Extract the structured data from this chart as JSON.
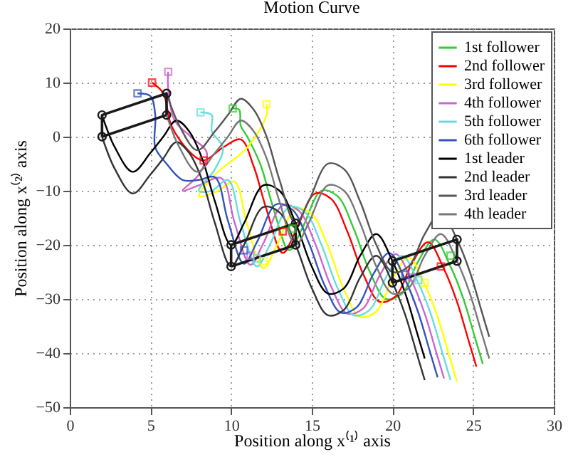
{
  "chart_data": {
    "type": "line",
    "title": "Motion Curve",
    "xlabel": "Position along x⁽¹⁾ axis",
    "ylabel": "Position along x⁽²⁾ axis",
    "xlim": [
      0,
      30
    ],
    "ylim": [
      -50,
      20
    ],
    "xticks": [
      0,
      5,
      10,
      15,
      20,
      25,
      30
    ],
    "yticks": [
      -50,
      -40,
      -30,
      -20,
      -10,
      0,
      10,
      20
    ],
    "grid": true,
    "legend": "top right",
    "marker": "none",
    "line_style": "solid",
    "series": [
      {
        "name": "1st follower",
        "color": "#33cc33",
        "x": [
          10.1,
          10.5,
          10.6,
          11,
          11.8,
          12.6,
          13.6,
          14.4,
          15.6,
          16.6,
          17.6,
          18.6,
          19.6,
          20.6,
          21.6,
          22.6,
          23.6,
          24.4,
          25.1,
          25.6
        ],
        "values": [
          5.2,
          5,
          2,
          0,
          -5,
          -13,
          -21,
          -17,
          -10,
          -11,
          -17,
          -25,
          -30,
          -29,
          -23,
          -19,
          -24,
          -30,
          -37,
          -42
        ]
      },
      {
        "name": "2nd follower",
        "color": "#ff0000",
        "x": [
          5.1,
          5.8,
          6.3,
          7.5,
          8.3,
          9.5,
          10.6,
          11.4,
          12.2,
          13.2,
          14,
          15.2,
          16.2,
          17.2,
          18.2,
          19.2,
          20.2,
          21.2,
          22.2,
          23.2,
          24,
          24.7,
          25.2
        ],
        "values": [
          10,
          8,
          2,
          -3,
          -4.4,
          -2,
          -0.5,
          -5.5,
          -13.5,
          -21.5,
          -17.5,
          -10.5,
          -11.5,
          -17.5,
          -25.5,
          -30.5,
          -29.5,
          -23.5,
          -19.5,
          -24.5,
          -30.5,
          -37.5,
          -42.5
        ]
      },
      {
        "name": "3rd follower",
        "color": "#ffff00",
        "x": [
          12.2,
          12.2,
          11,
          9,
          8,
          9.2,
          10.2,
          11,
          12,
          12.8,
          14,
          15,
          16,
          17,
          18,
          19,
          20,
          21,
          22,
          22.8,
          23.5,
          24
        ],
        "values": [
          6,
          4,
          -2,
          -7,
          -11,
          -10,
          -8.3,
          -16.3,
          -24.3,
          -20.3,
          -13.3,
          -14.3,
          -20.3,
          -28.3,
          -33.3,
          -32.3,
          -26.3,
          -22.3,
          -27.3,
          -33.3,
          -40.3,
          -45.3
        ]
      },
      {
        "name": "4th follower",
        "color": "#cc66cc",
        "x": [
          6.1,
          6.1,
          6.5,
          7.5,
          8.5,
          8,
          7,
          8,
          9.4,
          10.2,
          11.2,
          12,
          13.2,
          14.2,
          15.2,
          16.2,
          17.2,
          18.2,
          19.2,
          20.2,
          21.2,
          22,
          22.7,
          23.2
        ],
        "values": [
          12,
          9,
          3,
          0,
          -3,
          -7,
          -10,
          -9,
          -7.7,
          -15.7,
          -23.7,
          -19.7,
          -12.7,
          -13.7,
          -19.7,
          -27.7,
          -32.7,
          -31.7,
          -25.7,
          -21.7,
          -26.7,
          -32.7,
          -39.7,
          -44.7
        ]
      },
      {
        "name": "5th follower",
        "color": "#66dddd",
        "x": [
          8.1,
          8.8,
          8.8,
          9.5,
          9,
          8,
          8.8,
          9.8,
          10.6,
          11.6,
          12.4,
          13.6,
          14.6,
          15.6,
          16.6,
          17.6,
          18.6,
          19.6,
          20.6,
          21.6,
          22.4,
          23.1,
          23.6
        ],
        "values": [
          4.5,
          4,
          1,
          -2,
          -6,
          -10,
          -10,
          -8,
          -16,
          -24,
          -20,
          -13,
          -14,
          -20,
          -28,
          -33,
          -32,
          -26,
          -22,
          -27,
          -33,
          -40,
          -45
        ]
      },
      {
        "name": "6th follower",
        "color": "#3355bb",
        "x": [
          4.2,
          5,
          5.3,
          5.3,
          6,
          7,
          8,
          9,
          9.8,
          10.8,
          11.6,
          12.8,
          13.8,
          14.8,
          15.8,
          16.8,
          17.8,
          18.8,
          19.8,
          20.8,
          21.6,
          22.3,
          22.8
        ],
        "values": [
          8,
          7.5,
          4,
          -2,
          -5,
          -8,
          -8,
          -7.5,
          -15.5,
          -23.5,
          -19.5,
          -12.5,
          -13.5,
          -19.5,
          -27.5,
          -32.5,
          -31.5,
          -25.5,
          -21.5,
          -26.5,
          -32.5,
          -39.5,
          -44.5
        ]
      },
      {
        "name": "1st leader",
        "color": "#000000",
        "x": [
          2,
          2.8,
          3.9,
          5,
          5.8,
          6.6,
          7.4,
          8.2,
          9,
          10,
          10.8,
          12,
          13,
          14,
          15,
          16,
          17,
          18,
          19,
          20,
          20.8,
          21.5,
          22
        ],
        "values": [
          4,
          -2,
          -6.5,
          -3,
          0,
          3,
          1,
          -4,
          -12,
          -20,
          -16,
          -9,
          -10,
          -16,
          -24,
          -29,
          -28,
          -22,
          -18,
          -23,
          -29,
          -36,
          -41
        ]
      },
      {
        "name": "2nd leader",
        "color": "#333333",
        "x": [
          2,
          2.8,
          3.9,
          5,
          5.8,
          6.6,
          7.4,
          8.2,
          9,
          10,
          10.8,
          12,
          13,
          14,
          15,
          16,
          17,
          18,
          19,
          20,
          20.8,
          21.5,
          22
        ],
        "values": [
          0,
          -6,
          -10.5,
          -7,
          -4,
          -1,
          -3,
          -8,
          -16,
          -24,
          -20,
          -13,
          -14,
          -20,
          -28,
          -33,
          -32,
          -26,
          -22,
          -27,
          -33,
          -40,
          -45
        ]
      },
      {
        "name": "3rd leader",
        "color": "#555555",
        "x": [
          6,
          6.8,
          7.9,
          9,
          9.8,
          10.6,
          11.4,
          12.2,
          13,
          14,
          14.8,
          16,
          17,
          18,
          19,
          20,
          21,
          22,
          23,
          24,
          24.8,
          25.5,
          26
        ],
        "values": [
          8,
          2,
          -2.5,
          1,
          4,
          7,
          5,
          0,
          -8,
          -16,
          -12,
          -5,
          -6,
          -12,
          -20,
          -25,
          -24,
          -18,
          -14,
          -19,
          -25,
          -32,
          -37
        ]
      },
      {
        "name": "4th leader",
        "color": "#777777",
        "x": [
          6,
          6.8,
          7.9,
          9,
          9.8,
          10.6,
          11.4,
          12.2,
          13,
          14,
          14.8,
          16,
          17,
          18,
          19,
          20,
          21,
          22,
          23,
          24,
          24.8,
          25.5,
          26
        ],
        "values": [
          4,
          -2,
          -6.5,
          -3,
          0,
          3,
          1,
          -4,
          -12,
          -20,
          -16,
          -9,
          -10,
          -16,
          -24,
          -29,
          -28,
          -22,
          -18,
          -23,
          -29,
          -36,
          -41
        ]
      },
      {
        "type": "line",
        "marker": "circle",
        "color": "#1a1a1a",
        "x": [
          2,
          2,
          6,
          6
        ],
        "values": [
          0,
          4,
          8,
          4
        ]
      },
      {
        "type": "line",
        "marker": "none",
        "color": "#1a1a1a",
        "x": [
          2,
          6
        ],
        "values": [
          0,
          4
        ]
      },
      {
        "type": "line",
        "marker": "circle",
        "color": "#1a1a1a",
        "x": [
          10,
          10,
          14,
          14
        ],
        "values": [
          -24,
          -20,
          -16,
          -20
        ]
      },
      {
        "type": "line",
        "marker": "none",
        "color": "#1a1a1a",
        "x": [
          10,
          14
        ],
        "values": [
          -24,
          -20
        ]
      },
      {
        "type": "line",
        "marker": "circle",
        "color": "#1a1a1a",
        "x": [
          20,
          20,
          24,
          24
        ],
        "values": [
          -27,
          -23,
          -19,
          -23
        ]
      },
      {
        "type": "line",
        "marker": "none",
        "color": "#1a1a1a",
        "x": [
          20,
          24
        ],
        "values": [
          -27,
          -23
        ]
      },
      {
        "type": "scatter",
        "marker": "square",
        "color": "#33cc33",
        "x": [
          10.1,
          13.8,
          23.6
        ],
        "values": [
          5.2,
          -17,
          -22
        ]
      },
      {
        "type": "scatter",
        "marker": "square",
        "color": "#ff0000",
        "x": [
          5.1,
          8.3,
          13.2,
          23
        ],
        "values": [
          10,
          -4.4,
          -17.5,
          -24
        ]
      },
      {
        "type": "scatter",
        "marker": "square",
        "color": "#ffff00",
        "x": [
          12.2,
          12,
          22
        ],
        "values": [
          6,
          -23,
          -27
        ]
      },
      {
        "type": "scatter",
        "marker": "square",
        "color": "#cc66cc",
        "x": [
          6.1,
          11.2,
          21.2
        ],
        "values": [
          12,
          -22,
          -26
        ]
      },
      {
        "type": "scatter",
        "marker": "square",
        "color": "#66dddd",
        "x": [
          8.1,
          11.6,
          21.6
        ],
        "values": [
          4.5,
          -22.5,
          -26.5
        ]
      },
      {
        "type": "scatter",
        "marker": "square",
        "color": "#3355bb",
        "x": [
          4.2,
          10.8,
          20.8
        ],
        "values": [
          8,
          -21,
          -25.5
        ]
      }
    ]
  }
}
